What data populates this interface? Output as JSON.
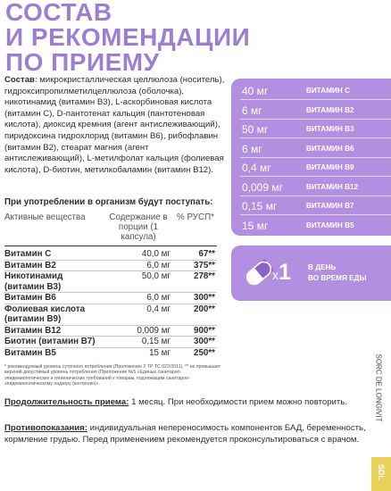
{
  "title": {
    "line1": "СОСТАВ",
    "line2": "И РЕКОМЕНДАЦИИ",
    "line3": "ПО ПРИЕМУ"
  },
  "composition": {
    "label": "Состав",
    "text": ": микрокристаллическая целлюлоза (носитель), гидроксипропилметилцеллюлоза (оболочка), никотинамид (витамин B3), L-аскорбиновая кислота (витамин С), D-пантотенат кальция (пантотеновая кислота), диоксид кремния (агент антислеживающий), пиридоксина гидрохлорид (витамин B6), рибофлавин (витамин B2), стеарат магния (агент антислеживающий), L-метилфолат кальция (фолиевая кислота), D-биотин, метилкобаламин (витамин B12)."
  },
  "intake": {
    "title": "При употреблении в организм будут поступать:",
    "headers": {
      "substance": "Активные вещества",
      "content": "Содержание в порции (1 капсула)",
      "percent": "% РУСП*"
    },
    "rows": [
      {
        "name": "Витамин С",
        "amount": "40,0 мг",
        "percent": "67**"
      },
      {
        "name": "Витамин B2",
        "amount": "6,0 мг",
        "percent": "375**"
      },
      {
        "name": "Никотинамид (витамин B3)",
        "amount": "50,0 мг",
        "percent": "278**"
      },
      {
        "name": "Витамин B6",
        "amount": "6,0 мг",
        "percent": "300**"
      },
      {
        "name": "Фолиевая кислота (витамин B9)",
        "amount": "0,4 мг",
        "percent": "200**"
      },
      {
        "name": "Витамин B12",
        "amount": "0,009 мг",
        "percent": "900**"
      },
      {
        "name": "Биотин (витамин B7)",
        "amount": "0,15 мг",
        "percent": "300**"
      },
      {
        "name": "Витамин B5",
        "amount": "15 мг",
        "percent": "250**"
      }
    ]
  },
  "footnote": "* рекомендуемый уровень суточного потребления (Приложение 2 ТР ТС 022/2011). ** не превышает верхний допустимый уровень потребления (Приложение №5 «Единых санитарно-эпидемиологических и гигиенических требований к товарам, подлежащим санитарно-эпидемиологическому надзору (контролю)».",
  "usage": {
    "label": "Продолжительность приема:",
    "text": " 1 месяц. При необходимости прием можно повторить."
  },
  "contraindications": {
    "label": "Противопоказания:",
    "text": " индивидуальная непереносимость компонентов БАД, беременность, кормление грудью. Перед применением рекомендуется проконсультироваться с врачом."
  },
  "vitamin_panel": [
    {
      "amount": "40 мг",
      "name": "ВИТАМИН С"
    },
    {
      "amount": "6 мг",
      "name": "ВИТАМИН B2"
    },
    {
      "amount": "50 мг",
      "name": "ВИТАМИН B3"
    },
    {
      "amount": "6 мг",
      "name": "ВИТАМИН B6"
    },
    {
      "amount": "0,4 мг",
      "name": "ВИТАМИН B9"
    },
    {
      "amount": "0,009 мг",
      "name": "ВИТАМИН B12"
    },
    {
      "amount": "0,15 мг",
      "name": "ВИТАМИН B7"
    },
    {
      "amount": "15 мг",
      "name": "ВИТАМИН B5"
    }
  ],
  "dose": {
    "icon": "capsule-icon",
    "multiplier_x": "x",
    "multiplier_n": "1",
    "line1": "В ДЕНЬ",
    "line2": "ВО ВРЕМЯ ЕДЫ"
  },
  "brand": {
    "side_text": "SORC DE LONGIVIT",
    "badge": "SDL"
  },
  "colors": {
    "accent": "#b28fe0",
    "title": "#9c7fd2",
    "badge": "#e9d25a"
  }
}
